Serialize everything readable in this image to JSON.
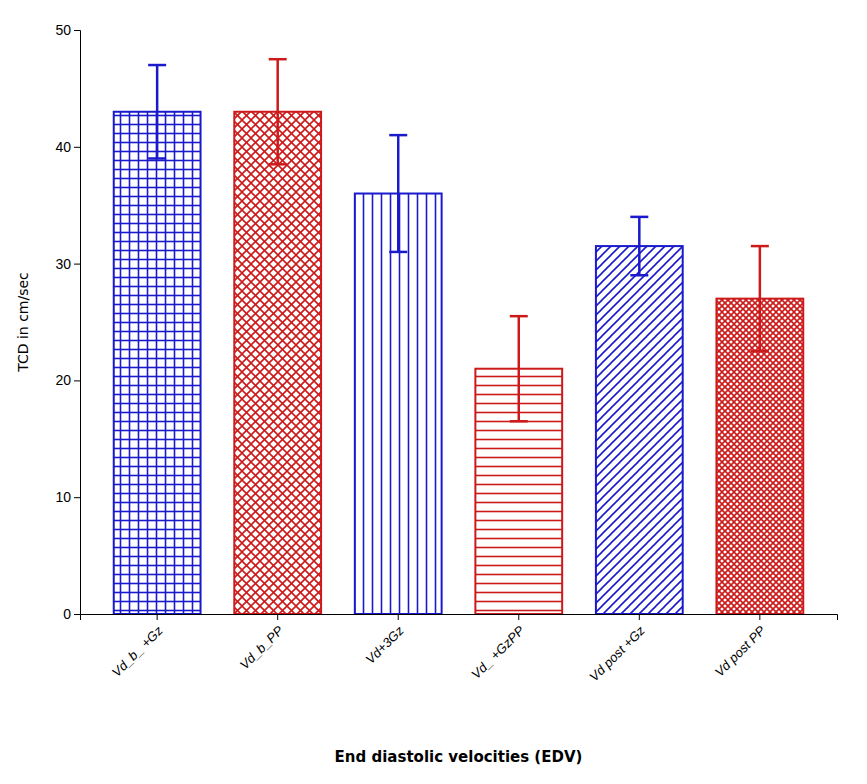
{
  "chart_data": {
    "type": "bar",
    "categories": [
      "Vd_b_ +Gz",
      "Vd_b_PP",
      "Vd+3Gz",
      "Vd_ +GzPP",
      "Vd post +Gz",
      "Vd post PP"
    ],
    "values": [
      43.0,
      43.0,
      36.0,
      21.0,
      31.5,
      27.0
    ],
    "errors": [
      4.0,
      4.5,
      5.0,
      4.5,
      2.5,
      4.5
    ],
    "colors": [
      "#1A1ACC",
      "#CC1A1A",
      "#1A1ACC",
      "#CC1A1A",
      "#1A1ACC",
      "#CC1A1A"
    ],
    "xlabel": "End diastolic velocities (EDV)",
    "ylabel": "TCD in cm/sec",
    "ylim": [
      0,
      50
    ],
    "yticks": [
      0,
      10,
      20,
      30,
      40,
      50
    ],
    "grid": false
  }
}
